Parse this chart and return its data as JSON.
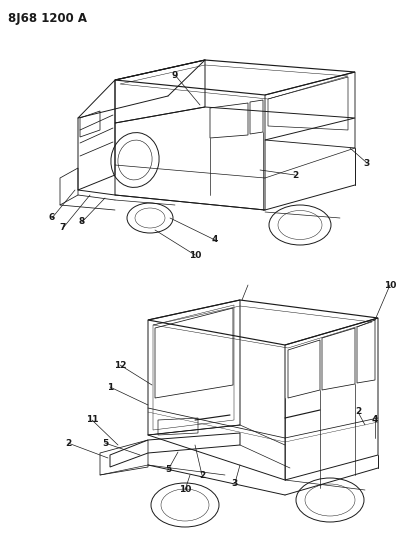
{
  "title": "8J68 1200 A",
  "bg_color": "#ffffff",
  "text_color": "#000000",
  "lw": 0.7,
  "col": "#1a1a1a",
  "label_fs": 6.5,
  "title_fs": 8.5
}
